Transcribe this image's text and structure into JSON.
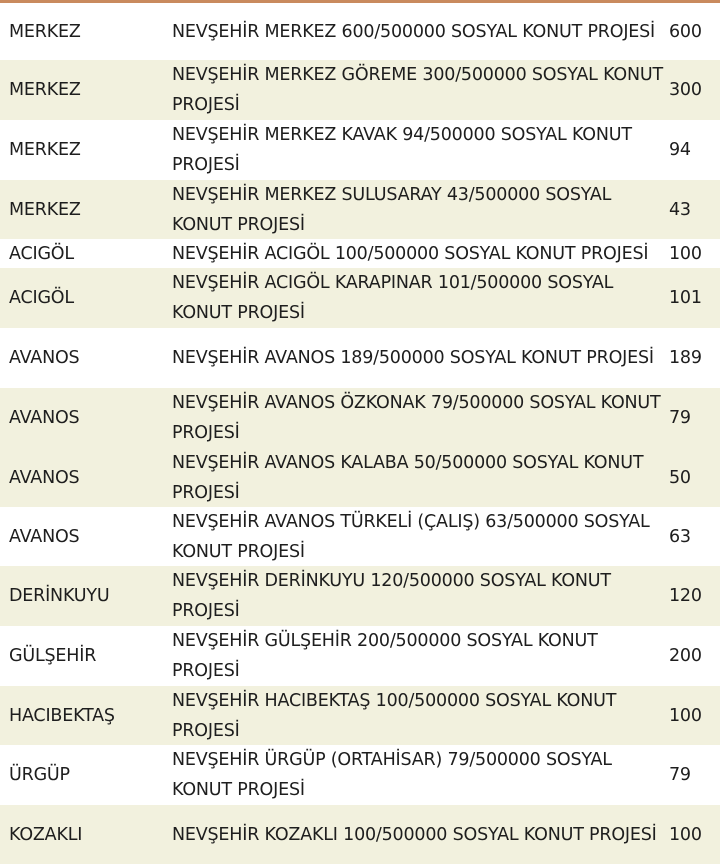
{
  "colors": {
    "top_border": "#c98a5e",
    "stripe": "#f2f1de"
  },
  "rows": [
    {
      "district": "MERKEZ",
      "project": "NEVŞEHİR MERKEZ 600/500000 SOSYAL KONUT PROJESİ",
      "count": "600",
      "shaded": false
    },
    {
      "district": "MERKEZ",
      "project": "NEVŞEHİR MERKEZ GÖREME 300/500000 SOSYAL KONUT PROJESİ",
      "count": "300",
      "shaded": true
    },
    {
      "district": "MERKEZ",
      "project": "NEVŞEHİR MERKEZ KAVAK 94/500000 SOSYAL KONUT PROJESİ",
      "count": "94",
      "shaded": false
    },
    {
      "district": "MERKEZ",
      "project": "NEVŞEHİR MERKEZ SULUSARAY 43/500000 SOSYAL KONUT PROJESİ",
      "count": "43",
      "shaded": true
    },
    {
      "district": "ACIGÖL",
      "project": "NEVŞEHİR ACIGÖL 100/500000 SOSYAL KONUT PROJESİ",
      "count": "100",
      "shaded": false
    },
    {
      "district": "ACIGÖL",
      "project": "NEVŞEHİR ACIGÖL KARAPINAR 101/500000 SOSYAL KONUT PROJESİ",
      "count": "101",
      "shaded": true
    },
    {
      "district": "AVANOS",
      "project": "NEVŞEHİR AVANOS 189/500000 SOSYAL KONUT PROJESİ",
      "count": "189",
      "shaded": false
    },
    {
      "district": "AVANOS",
      "project": "NEVŞEHİR AVANOS ÖZKONAK 79/500000 SOSYAL KONUT PROJESİ",
      "count": "79",
      "shaded": true
    },
    {
      "district": "AVANOS",
      "project": "NEVŞEHİR AVANOS KALABA 50/500000 SOSYAL KONUT PROJESİ",
      "count": "50",
      "shaded": true
    },
    {
      "district": "AVANOS",
      "project": "NEVŞEHİR AVANOS TÜRKELİ (ÇALIŞ) 63/500000 SOSYAL KONUT PROJESİ",
      "count": "63",
      "shaded": false
    },
    {
      "district": "DERİNKUYU",
      "project": "NEVŞEHİR DERİNKUYU 120/500000 SOSYAL KONUT PROJESİ",
      "count": "120",
      "shaded": true
    },
    {
      "district": "GÜLŞEHİR",
      "project": "NEVŞEHİR GÜLŞEHİR 200/500000 SOSYAL KONUT PROJESİ",
      "count": "200",
      "shaded": false
    },
    {
      "district": "HACIBEKTAŞ",
      "project": "NEVŞEHİR HACIBEKTAŞ 100/500000 SOSYAL KONUT PROJESİ",
      "count": "100",
      "shaded": true
    },
    {
      "district": "ÜRGÜP",
      "project": "NEVŞEHİR ÜRGÜP (ORTAHİSAR) 79/500000 SOSYAL KONUT PROJESİ",
      "count": "79",
      "shaded": false
    },
    {
      "district": "KOZAKLI",
      "project": "NEVŞEHİR KOZAKLI 100/500000 SOSYAL KONUT PROJESİ",
      "count": "100",
      "shaded": true
    }
  ]
}
